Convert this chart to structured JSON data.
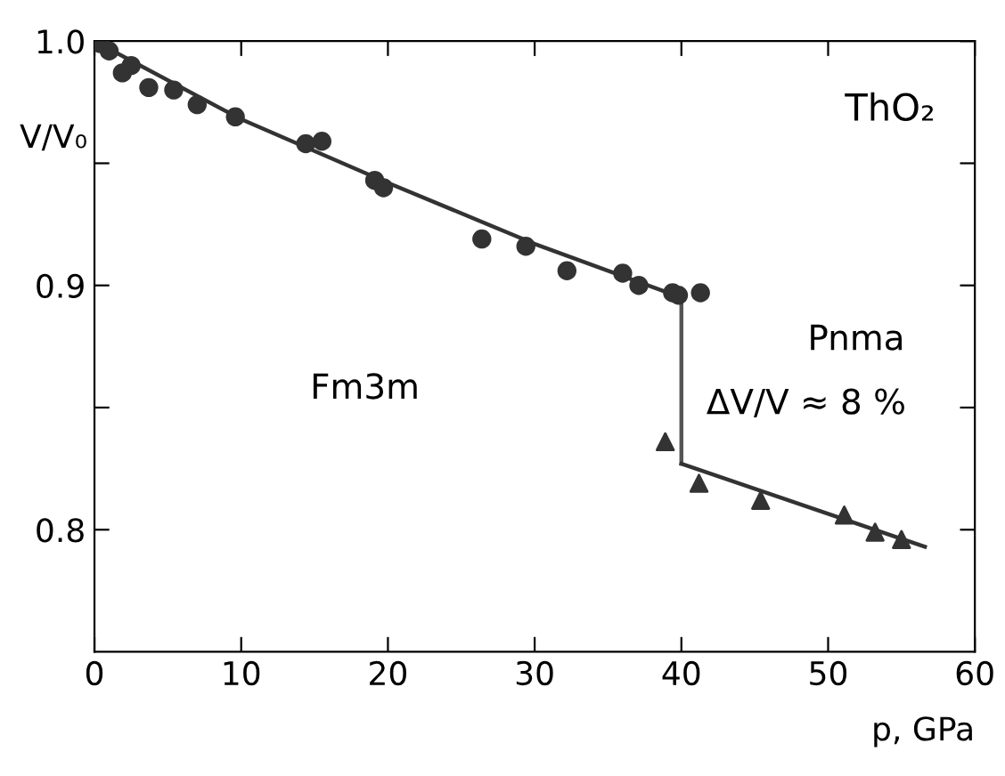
{
  "chart_data": {
    "type": "scatter",
    "title": "ThO₂",
    "xlabel": "p, GPa",
    "ylabel": "V/V₀",
    "xlim": [
      0,
      60
    ],
    "xticks": [
      0,
      10,
      20,
      30,
      40,
      50,
      60
    ],
    "ylim": [
      0.75,
      1.0
    ],
    "yticks": [
      {
        "value": 0.8,
        "label": "0.8"
      },
      {
        "value": 0.85,
        "label": null
      },
      {
        "value": 0.9,
        "label": "0.9"
      },
      {
        "value": 0.95,
        "label": null
      },
      {
        "value": 1.0,
        "label": "1.0"
      }
    ],
    "grid": false,
    "legend": false,
    "series": [
      {
        "marker": "circle",
        "color": "#333333",
        "x": [
          0.4,
          1.0,
          1.9,
          2.5,
          3.7,
          5.4,
          7.0,
          9.6,
          14.4,
          15.5,
          19.1,
          19.7,
          26.4,
          29.4,
          32.2,
          36.0,
          37.1,
          39.4,
          39.8,
          41.3
        ],
        "values": [
          0.999,
          0.996,
          0.987,
          0.99,
          0.981,
          0.98,
          0.974,
          0.969,
          0.958,
          0.959,
          0.943,
          0.94,
          0.919,
          0.916,
          0.906,
          0.905,
          0.9,
          0.897,
          0.896,
          0.897
        ]
      },
      {
        "marker": "triangle",
        "color": "#333333",
        "x": [
          38.9,
          41.2,
          45.4,
          51.1,
          53.2,
          55.0
        ],
        "values": [
          0.836,
          0.819,
          0.812,
          0.806,
          0.799,
          0.796
        ]
      },
      {
        "type": "line",
        "color": "#333333",
        "x": [
          0,
          10,
          20,
          30,
          40
        ],
        "values": [
          1.0,
          0.968,
          0.942,
          0.917,
          0.895
        ]
      },
      {
        "type": "line",
        "color": "#555555",
        "x": [
          40,
          40
        ],
        "values": [
          0.895,
          0.827
        ]
      },
      {
        "type": "line",
        "color": "#333333",
        "x": [
          40,
          56.6
        ],
        "values": [
          0.827,
          0.793
        ]
      }
    ],
    "annotations": [
      "Fm3m",
      "Pnma",
      "ΔV/V ≈ 8 %"
    ]
  }
}
